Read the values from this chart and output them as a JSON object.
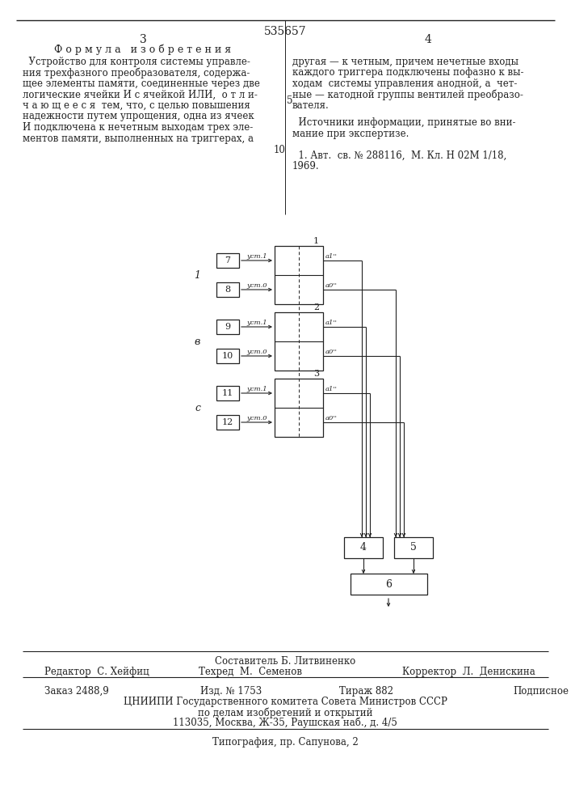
{
  "page_number_center": "535657",
  "bg_color": "#ffffff",
  "line_color": "#222222",
  "text_color": "#222222",
  "footer_compiler": "Составитель Б. Литвиненко",
  "footer_editor": "Редактор  С. Хейфиц",
  "footer_tech": "Техред  М.  Семенов",
  "footer_corrector": "Корректор  Л.  Денискина",
  "footer_order": "Заказ 2488,9",
  "footer_izd": "Изд. № 1753",
  "footer_tirazh": "Тираж 882",
  "footer_podpisnoe": "Подписное",
  "footer_org": "ЦНИИПИ Государственного комитета Совета Министров СССР",
  "footer_org2": "по делам изобретений и открытий",
  "footer_address": "113035, Москва, Ж-35, Раушская наб., д. 4/5",
  "footer_typo": "Типография, пр. Сапунова, 2"
}
